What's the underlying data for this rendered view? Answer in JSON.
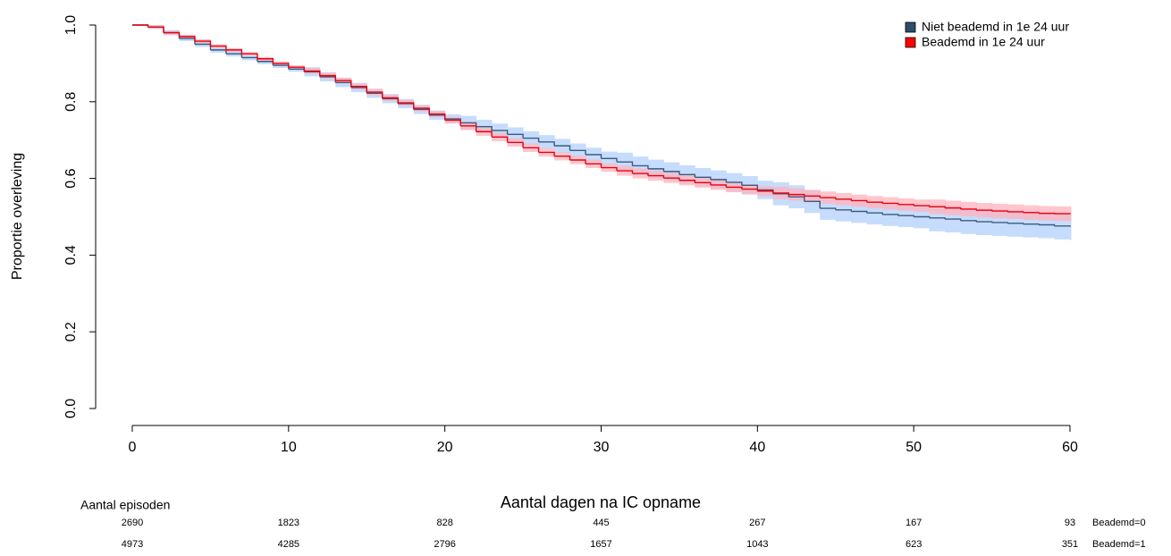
{
  "chart_data": {
    "type": "step",
    "xlabel": "Aantal dagen na IC opname",
    "ylabel": "Proportie overleving",
    "legend": "top-right",
    "xlim": [
      0,
      60
    ],
    "ylim": [
      0,
      1
    ],
    "xticks": [
      0,
      10,
      20,
      30,
      40,
      50,
      60
    ],
    "yticks": [
      {
        "value": 0,
        "label": "0.0"
      },
      0.2,
      0.4,
      0.6,
      0.8,
      {
        "value": 1,
        "label": "1.0"
      }
    ],
    "x": [
      0,
      1,
      2,
      3,
      4,
      5,
      6,
      7,
      8,
      9,
      10,
      11,
      12,
      13,
      14,
      15,
      16,
      17,
      18,
      19,
      20,
      21,
      22,
      23,
      24,
      25,
      26,
      27,
      28,
      29,
      30,
      31,
      32,
      33,
      34,
      35,
      36,
      37,
      38,
      39,
      40,
      41,
      42,
      43,
      44,
      45,
      46,
      47,
      48,
      49,
      50,
      51,
      52,
      53,
      54,
      55,
      56,
      57,
      58,
      59,
      60
    ],
    "series": [
      {
        "name": "Niet beademd in 1e 24 uur",
        "color": "#3a5a80",
        "band_color": "#c6dcfc",
        "legend_color": "#2e4d6e",
        "values": [
          1,
          0.995,
          0.98,
          0.965,
          0.95,
          0.935,
          0.925,
          0.915,
          0.905,
          0.895,
          0.885,
          0.878,
          0.865,
          0.85,
          0.837,
          0.822,
          0.808,
          0.795,
          0.78,
          0.765,
          0.755,
          0.745,
          0.735,
          0.725,
          0.715,
          0.705,
          0.695,
          0.685,
          0.673,
          0.662,
          0.652,
          0.643,
          0.633,
          0.625,
          0.618,
          0.61,
          0.603,
          0.597,
          0.59,
          0.582,
          0.57,
          0.56,
          0.552,
          0.54,
          0.522,
          0.518,
          0.514,
          0.51,
          0.506,
          0.503,
          0.5,
          0.497,
          0.494,
          0.49,
          0.487,
          0.485,
          0.483,
          0.481,
          0.479,
          0.476,
          0.474
        ],
        "lower": [
          1,
          0.99,
          0.973,
          0.958,
          0.943,
          0.928,
          0.918,
          0.908,
          0.898,
          0.888,
          0.878,
          0.866,
          0.853,
          0.838,
          0.825,
          0.81,
          0.796,
          0.783,
          0.768,
          0.753,
          0.743,
          0.727,
          0.717,
          0.707,
          0.697,
          0.687,
          0.677,
          0.667,
          0.655,
          0.644,
          0.634,
          0.619,
          0.609,
          0.601,
          0.594,
          0.586,
          0.579,
          0.573,
          0.566,
          0.558,
          0.546,
          0.53,
          0.522,
          0.51,
          0.492,
          0.488,
          0.484,
          0.48,
          0.476,
          0.473,
          0.47,
          0.462,
          0.459,
          0.455,
          0.452,
          0.45,
          0.448,
          0.446,
          0.444,
          0.441,
          0.439
        ],
        "upper": [
          1,
          1,
          0.987,
          0.972,
          0.957,
          0.942,
          0.932,
          0.922,
          0.912,
          0.902,
          0.892,
          0.89,
          0.877,
          0.862,
          0.849,
          0.834,
          0.82,
          0.807,
          0.792,
          0.777,
          0.767,
          0.763,
          0.753,
          0.743,
          0.733,
          0.723,
          0.713,
          0.703,
          0.691,
          0.68,
          0.67,
          0.667,
          0.657,
          0.649,
          0.642,
          0.634,
          0.627,
          0.621,
          0.614,
          0.606,
          0.594,
          0.59,
          0.582,
          0.57,
          0.552,
          0.548,
          0.544,
          0.54,
          0.536,
          0.533,
          0.53,
          0.532,
          0.529,
          0.525,
          0.522,
          0.52,
          0.518,
          0.516,
          0.514,
          0.511,
          0.509
        ]
      },
      {
        "name": "Beademd in 1e 24 uur",
        "color": "#e8000b",
        "band_color": "#ffb3be",
        "legend_color": "#ff0000",
        "values": [
          1,
          0.995,
          0.98,
          0.97,
          0.958,
          0.945,
          0.935,
          0.925,
          0.912,
          0.9,
          0.89,
          0.88,
          0.868,
          0.855,
          0.84,
          0.825,
          0.81,
          0.797,
          0.783,
          0.768,
          0.752,
          0.737,
          0.722,
          0.708,
          0.694,
          0.68,
          0.668,
          0.658,
          0.648,
          0.638,
          0.628,
          0.62,
          0.613,
          0.607,
          0.601,
          0.595,
          0.589,
          0.583,
          0.577,
          0.572,
          0.567,
          0.562,
          0.558,
          0.554,
          0.55,
          0.546,
          0.542,
          0.538,
          0.535,
          0.532,
          0.529,
          0.526,
          0.523,
          0.52,
          0.517,
          0.515,
          0.513,
          0.511,
          0.509,
          0.508,
          0.507
        ],
        "lower": [
          1,
          0.99,
          0.975,
          0.965,
          0.953,
          0.94,
          0.93,
          0.92,
          0.907,
          0.895,
          0.885,
          0.872,
          0.86,
          0.847,
          0.832,
          0.817,
          0.802,
          0.789,
          0.775,
          0.76,
          0.744,
          0.726,
          0.711,
          0.697,
          0.683,
          0.669,
          0.657,
          0.647,
          0.637,
          0.627,
          0.617,
          0.607,
          0.6,
          0.594,
          0.588,
          0.582,
          0.576,
          0.57,
          0.564,
          0.559,
          0.554,
          0.546,
          0.542,
          0.538,
          0.534,
          0.53,
          0.526,
          0.522,
          0.519,
          0.516,
          0.513,
          0.507,
          0.504,
          0.501,
          0.498,
          0.496,
          0.494,
          0.492,
          0.49,
          0.489,
          0.488
        ],
        "upper": [
          1,
          1,
          0.985,
          0.975,
          0.963,
          0.95,
          0.94,
          0.93,
          0.917,
          0.905,
          0.895,
          0.888,
          0.876,
          0.863,
          0.848,
          0.833,
          0.818,
          0.805,
          0.791,
          0.776,
          0.76,
          0.748,
          0.733,
          0.719,
          0.705,
          0.691,
          0.679,
          0.669,
          0.659,
          0.649,
          0.639,
          0.633,
          0.626,
          0.62,
          0.614,
          0.608,
          0.602,
          0.596,
          0.59,
          0.585,
          0.58,
          0.578,
          0.574,
          0.57,
          0.566,
          0.562,
          0.558,
          0.554,
          0.551,
          0.548,
          0.545,
          0.545,
          0.542,
          0.539,
          0.536,
          0.534,
          0.532,
          0.53,
          0.528,
          0.527,
          0.526
        ]
      }
    ],
    "risk_table": {
      "title": "Aantal episoden",
      "rows": [
        {
          "label": "Beademd=0",
          "values": [
            2690,
            1823,
            828,
            445,
            267,
            167,
            93
          ]
        },
        {
          "label": "Beademd=1",
          "values": [
            4973,
            4285,
            2796,
            1657,
            1043,
            623,
            351
          ]
        }
      ]
    }
  }
}
